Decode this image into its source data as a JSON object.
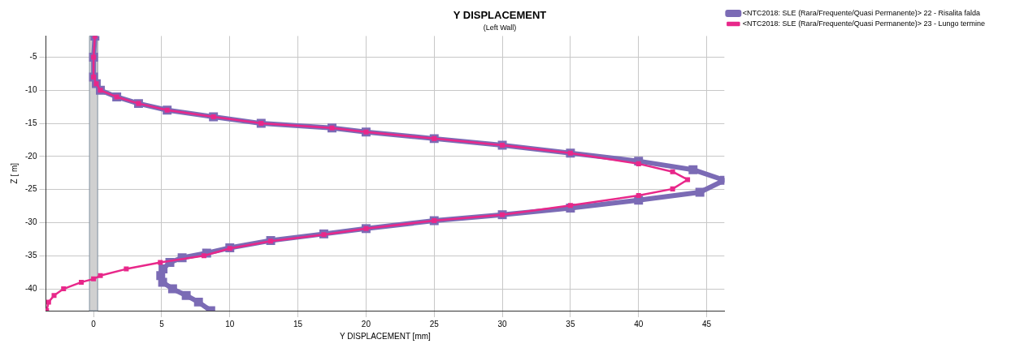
{
  "chart_data": {
    "type": "line",
    "title": "Y DISPLACEMENT",
    "subtitle": "(Left Wall)",
    "xlabel": "Y DISPLACEMENT [mm]",
    "ylabel": "Z [ m]",
    "xlim": [
      -3.5,
      46.3
    ],
    "xticks": [
      0,
      5,
      10,
      15,
      20,
      25,
      30,
      35,
      40,
      45
    ],
    "ylim": [
      -43.3,
      -1.8
    ],
    "yticks": [
      -5,
      -10,
      -15,
      -20,
      -25,
      -30,
      -35,
      -40
    ],
    "grid": true,
    "legend": "top right",
    "marker": "square",
    "line_style": "solid",
    "bands": [
      {
        "axis": "x",
        "from": -0.3,
        "to": 0.3,
        "color": "#d0d0d0"
      }
    ],
    "series": [
      {
        "name": "<NTC2018: SLE (Rara/Frequente/Quasi Permanente)> 22 - Risalita falda",
        "color": "#7b6bb5",
        "x": [
          0.1,
          0.0,
          0.0,
          0.2,
          0.5,
          1.7,
          3.3,
          5.4,
          8.8,
          12.3,
          17.5,
          20,
          25,
          30,
          35,
          40,
          44,
          46.3,
          44.5,
          40,
          35,
          30,
          25,
          20,
          16.9,
          13,
          10,
          8.3,
          6.5,
          5.6,
          5.1,
          4.93,
          5.07,
          5.8,
          6.8,
          7.7,
          8.6
        ],
        "values": [
          -1.8,
          -5,
          -8,
          -9,
          -10,
          -11,
          -12,
          -13,
          -14,
          -15,
          -15.7,
          -16.3,
          -17.3,
          -18.3,
          -19.5,
          -20.7,
          -22,
          -23.6,
          -25.4,
          -26.6,
          -27.8,
          -28.8,
          -29.7,
          -30.9,
          -31.7,
          -32.7,
          -33.8,
          -34.6,
          -35.3,
          -36,
          -37,
          -38,
          -39,
          -40,
          -41,
          -42,
          -43.3
        ]
      },
      {
        "name": "<NTC2018: SLE (Rara/Frequente/Quasi Permanente)> 23 - Lungo termine",
        "color": "#e8288a",
        "x": [
          0.1,
          0.0,
          0.0,
          0.2,
          0.5,
          1.7,
          3.3,
          5.4,
          8.8,
          12.3,
          17.5,
          20,
          25,
          30,
          35,
          40,
          42.5,
          43.6,
          42.5,
          40,
          35,
          30,
          25,
          20,
          16.9,
          13,
          10,
          8.1,
          4.9,
          2.4,
          0.5,
          0,
          -0.9,
          -2.2,
          -2.9,
          -3.3,
          -3.45
        ],
        "values": [
          -1.8,
          -5,
          -8,
          -9,
          -10,
          -11,
          -12,
          -13,
          -14,
          -15,
          -15.7,
          -16.3,
          -17.3,
          -18.3,
          -19.5,
          -21.1,
          -22.3,
          -23.5,
          -24.9,
          -25.9,
          -27.4,
          -28.8,
          -29.7,
          -30.9,
          -31.8,
          -32.8,
          -33.9,
          -35,
          -36,
          -37,
          -38,
          -38.5,
          -39,
          -40,
          -41,
          -42,
          -43.3
        ]
      }
    ]
  }
}
